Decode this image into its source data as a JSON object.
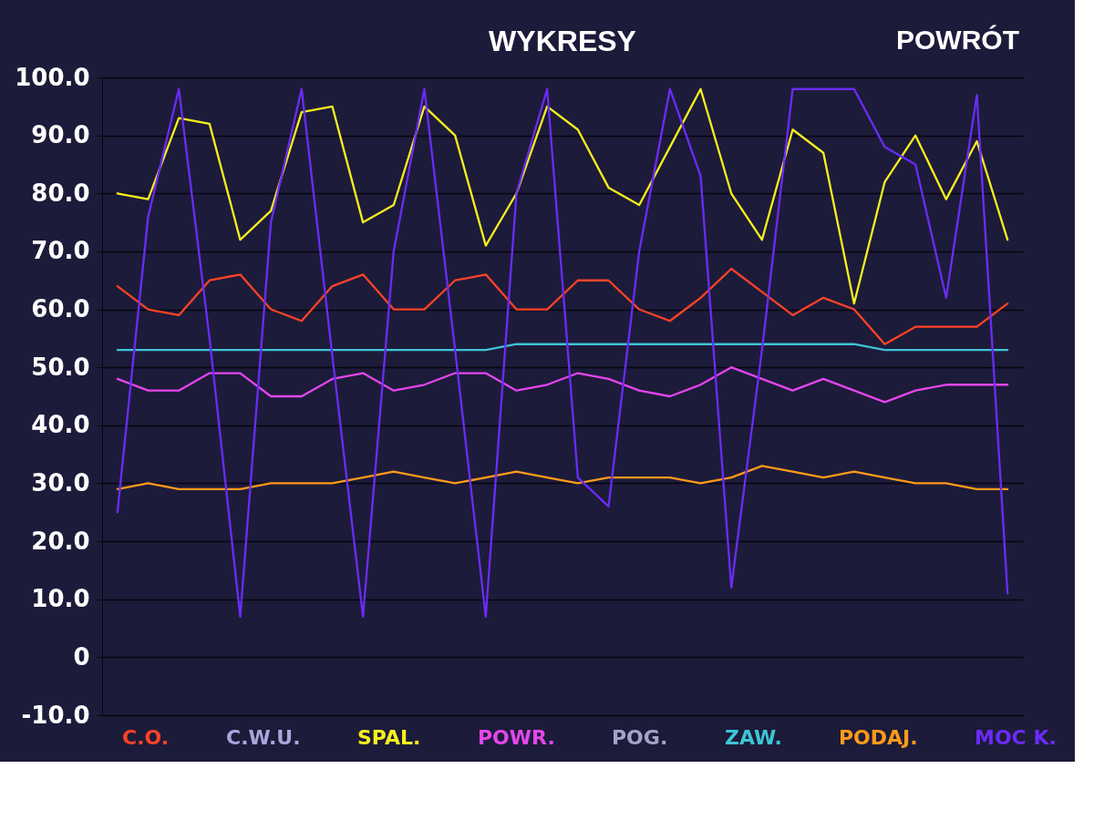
{
  "chart_data": {
    "type": "line",
    "title": "WYKRESY",
    "annotations": [
      "POWRÓT"
    ],
    "categories": [
      null,
      null,
      null,
      null,
      null,
      null,
      null,
      null,
      null,
      null,
      null,
      null,
      null,
      null,
      null,
      null,
      null,
      null,
      null,
      null,
      null,
      null,
      null,
      null,
      null,
      null,
      null,
      null,
      null,
      null
    ],
    "series": [
      {
        "name": "C.O.",
        "color": "#ff4326",
        "values": [
          64,
          60,
          59,
          65,
          66,
          60,
          58,
          64,
          66,
          60,
          60,
          65,
          66,
          60,
          60,
          65,
          65,
          60,
          58,
          62,
          67,
          63,
          59,
          62,
          60,
          54,
          57,
          57,
          57,
          61
        ]
      },
      {
        "name": "C.W.U.",
        "color": "#a9a6dc",
        "values": [
          null,
          null,
          null,
          null,
          null,
          null,
          null,
          null,
          null,
          null,
          null,
          null,
          null,
          null,
          null,
          null,
          null,
          null,
          null,
          null,
          null,
          null,
          null,
          null,
          null,
          null,
          null,
          null,
          null,
          null
        ]
      },
      {
        "name": "SPAL.",
        "color": "#f6f01e",
        "values": [
          80,
          79,
          93,
          92,
          72,
          77,
          94,
          95,
          75,
          78,
          95,
          90,
          71,
          80,
          95,
          91,
          81,
          78,
          88,
          98,
          80,
          72,
          91,
          87,
          61,
          82,
          90,
          79,
          89,
          72
        ]
      },
      {
        "name": "POWR.",
        "color": "#e446ec",
        "values": [
          48,
          46,
          46,
          49,
          49,
          45,
          45,
          48,
          49,
          46,
          47,
          49,
          49,
          46,
          47,
          49,
          48,
          46,
          45,
          47,
          50,
          48,
          46,
          48,
          46,
          44,
          46,
          47,
          47,
          47
        ]
      },
      {
        "name": "POG.",
        "color": "#a7a2c8",
        "values": [
          null,
          null,
          null,
          null,
          null,
          null,
          null,
          null,
          null,
          null,
          null,
          null,
          null,
          null,
          null,
          null,
          null,
          null,
          null,
          null,
          null,
          null,
          null,
          null,
          null,
          null,
          null,
          null,
          null,
          null
        ]
      },
      {
        "name": "ZAW.",
        "color": "#3ec4d6",
        "values": [
          53,
          53,
          53,
          53,
          53,
          53,
          53,
          53,
          53,
          53,
          53,
          53,
          53,
          54,
          54,
          54,
          54,
          54,
          54,
          54,
          54,
          54,
          54,
          54,
          54,
          53,
          53,
          53,
          53,
          53
        ]
      },
      {
        "name": "PODAJ.",
        "color": "#ff9a1a",
        "values": [
          29,
          30,
          29,
          29,
          29,
          30,
          30,
          30,
          31,
          32,
          31,
          30,
          31,
          32,
          31,
          30,
          31,
          31,
          31,
          30,
          31,
          33,
          32,
          31,
          32,
          31,
          30,
          30,
          29,
          29
        ]
      },
      {
        "name": "MOC K.",
        "color": "#6b2cf5",
        "values": [
          25,
          76,
          98,
          55,
          7,
          75,
          98,
          52,
          7,
          70,
          98,
          53,
          7,
          80,
          98,
          31,
          26,
          70,
          98,
          83,
          12,
          53,
          98,
          98,
          98,
          88,
          85,
          62,
          97,
          11
        ]
      }
    ],
    "ylim": [
      -10,
      100
    ],
    "yticks": [
      {
        "value": 100,
        "label": "100.0"
      },
      {
        "value": 90,
        "label": "90.0"
      },
      {
        "value": 80,
        "label": "80.0"
      },
      {
        "value": 70,
        "label": "70.0"
      },
      {
        "value": 60,
        "label": "60.0"
      },
      {
        "value": 50,
        "label": "50.0"
      },
      {
        "value": 40,
        "label": "40.0"
      },
      {
        "value": 30,
        "label": "30.0"
      },
      {
        "value": 20,
        "label": "20.0"
      },
      {
        "value": 10,
        "label": "10.0"
      },
      0,
      {
        "value": -10,
        "label": "-10.0"
      }
    ],
    "grid": "y",
    "legend": "bottom",
    "tick_labels": "y"
  }
}
